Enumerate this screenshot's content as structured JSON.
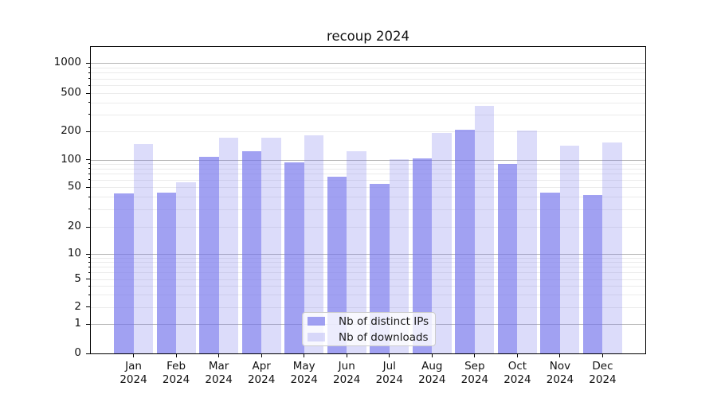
{
  "chart_data": {
    "type": "bar",
    "title": "recoup 2024",
    "categories": [
      "Jan\n2024",
      "Feb\n2024",
      "Mar\n2024",
      "Apr\n2024",
      "May\n2024",
      "Jun\n2024",
      "Jul\n2024",
      "Aug\n2024",
      "Sep\n2024",
      "Oct\n2024",
      "Nov\n2024",
      "Dec\n2024"
    ],
    "series": [
      {
        "name": "Nb of distinct IPs",
        "color": "rgba(115,115,235,0.67)",
        "values": [
          43,
          44,
          108,
          123,
          93,
          65,
          54,
          102,
          208,
          90,
          44,
          42
        ]
      },
      {
        "name": "Nb of downloads",
        "color": "rgba(115,115,235,0.25)",
        "values": [
          146,
          56,
          170,
          171,
          180,
          123,
          101,
          192,
          365,
          202,
          141,
          152
        ]
      }
    ],
    "y_ticks": [
      0,
      1,
      2,
      5,
      10,
      20,
      50,
      100,
      200,
      500,
      1000
    ],
    "y_scale": "symlog",
    "ylim": [
      0,
      1300
    ],
    "xlabel": "",
    "ylabel": "",
    "grid": true,
    "legend_position": "lower center",
    "colors": {
      "bar_base": "#7373eb",
      "major_grid": "#b4b4b4",
      "minor_grid": "#ebebeb",
      "axis": "#000000"
    }
  }
}
